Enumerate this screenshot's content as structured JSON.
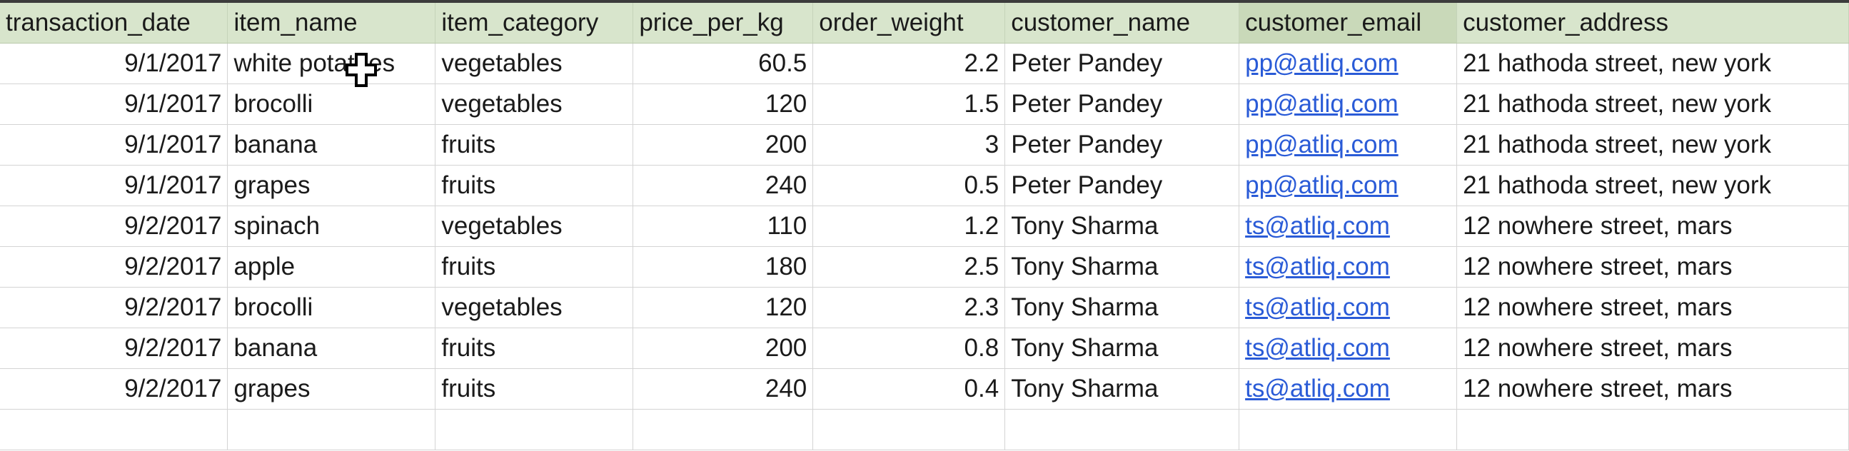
{
  "sheet": {
    "columns": [
      "transaction_date",
      "item_name",
      "item_category",
      "price_per_kg",
      "order_weight",
      "customer_name",
      "customer_email",
      "customer_address"
    ],
    "rows": [
      [
        "9/1/2017",
        "white potatoes",
        "vegetables",
        "60.5",
        "2.2",
        "Peter Pandey",
        "pp@atliq.com",
        "21 hathoda street, new york"
      ],
      [
        "9/1/2017",
        "brocolli",
        "vegetables",
        "120",
        "1.5",
        "Peter Pandey",
        "pp@atliq.com",
        "21 hathoda street, new york"
      ],
      [
        "9/1/2017",
        "banana",
        "fruits",
        "200",
        "3",
        "Peter Pandey",
        "pp@atliq.com",
        "21 hathoda street, new york"
      ],
      [
        "9/1/2017",
        "grapes",
        "fruits",
        "240",
        "0.5",
        "Peter Pandey",
        "pp@atliq.com",
        "21 hathoda street, new york"
      ],
      [
        "9/2/2017",
        "spinach",
        "vegetables",
        "110",
        "1.2",
        "Tony Sharma",
        "ts@atliq.com",
        "12 nowhere street, mars"
      ],
      [
        "9/2/2017",
        "apple",
        "fruits",
        "180",
        "2.5",
        "Tony Sharma",
        "ts@atliq.com",
        "12 nowhere street, mars"
      ],
      [
        "9/2/2017",
        "brocolli",
        "vegetables",
        "120",
        "2.3",
        "Tony Sharma",
        "ts@atliq.com",
        "12 nowhere street, mars"
      ],
      [
        "9/2/2017",
        "banana",
        "fruits",
        "200",
        "0.8",
        "Tony Sharma",
        "ts@atliq.com",
        "12 nowhere street, mars"
      ],
      [
        "9/2/2017",
        "grapes",
        "fruits",
        "240",
        "0.4",
        "Tony Sharma",
        "ts@atliq.com",
        "12 nowhere street, mars"
      ]
    ],
    "selected_column": "customer_email",
    "colors": {
      "header_bg": "#d8e5cc",
      "link": "#2a5bd7",
      "gridline": "#d4d4d4"
    }
  },
  "cursor": {
    "icon": "cross-cell-cursor-icon"
  }
}
